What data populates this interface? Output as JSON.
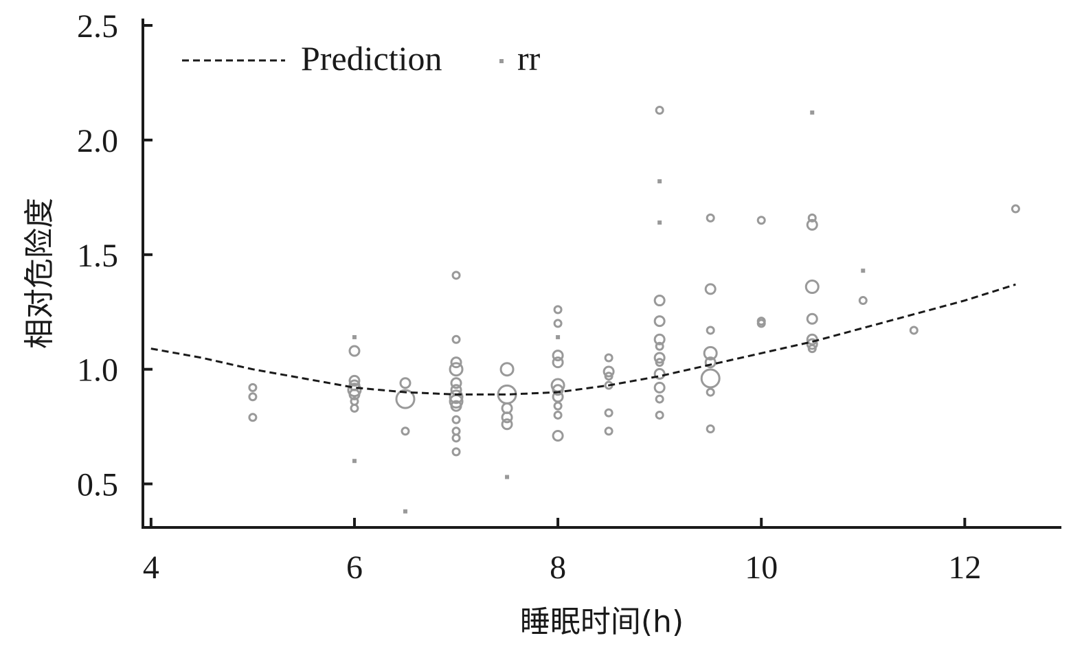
{
  "chart_data": {
    "type": "scatter",
    "xlabel": "睡眠时间(h)",
    "ylabel": "相对危险度",
    "xlim": [
      3.92,
      12.95
    ],
    "ylim": [
      0.31,
      2.53
    ],
    "x_ticks": [
      4,
      6,
      8,
      10,
      12
    ],
    "x_tick_labels": [
      "4",
      "6",
      "8",
      "10",
      "12"
    ],
    "y_ticks": [
      0.5,
      1.0,
      1.5,
      2.0,
      2.5
    ],
    "y_tick_labels": [
      "0.5",
      "1.0",
      "1.5",
      "2.0",
      "2.5"
    ],
    "legend_position": "top-left",
    "colors": {
      "axis": "#1a1a1a",
      "prediction": "#1a1a1a",
      "rr": "#999999"
    },
    "series": [
      {
        "name": "Prediction",
        "kind": "dashed-line",
        "x": [
          4,
          4.5,
          5,
          5.5,
          6,
          6.5,
          7,
          7.5,
          8,
          8.5,
          9,
          9.5,
          10,
          10.5,
          11,
          11.5,
          12,
          12.5
        ],
        "y": [
          1.09,
          1.05,
          1.0,
          0.96,
          0.92,
          0.9,
          0.89,
          0.89,
          0.9,
          0.93,
          0.97,
          1.02,
          1.07,
          1.12,
          1.18,
          1.24,
          1.3,
          1.37
        ]
      },
      {
        "name": "rr",
        "kind": "bubbles",
        "points": [
          {
            "x": 5,
            "y": 0.92,
            "w": 1
          },
          {
            "x": 5,
            "y": 0.88,
            "w": 1
          },
          {
            "x": 5,
            "y": 0.79,
            "w": 1
          },
          {
            "x": 6,
            "y": 1.14,
            "w": 0
          },
          {
            "x": 6,
            "y": 1.08,
            "w": 2
          },
          {
            "x": 6,
            "y": 0.95,
            "w": 2
          },
          {
            "x": 6,
            "y": 0.93,
            "w": 2
          },
          {
            "x": 6,
            "y": 0.91,
            "w": 3
          },
          {
            "x": 6,
            "y": 0.89,
            "w": 2
          },
          {
            "x": 6,
            "y": 0.86,
            "w": 1
          },
          {
            "x": 6,
            "y": 0.83,
            "w": 1
          },
          {
            "x": 6,
            "y": 0.6,
            "w": 0
          },
          {
            "x": 6.5,
            "y": 0.94,
            "w": 2
          },
          {
            "x": 6.5,
            "y": 0.87,
            "w": 4
          },
          {
            "x": 6.5,
            "y": 0.73,
            "w": 1
          },
          {
            "x": 6.5,
            "y": 0.38,
            "w": 0
          },
          {
            "x": 7,
            "y": 1.41,
            "w": 1
          },
          {
            "x": 7,
            "y": 1.13,
            "w": 1
          },
          {
            "x": 7,
            "y": 1.03,
            "w": 2
          },
          {
            "x": 7,
            "y": 1.0,
            "w": 3
          },
          {
            "x": 7,
            "y": 0.94,
            "w": 2
          },
          {
            "x": 7,
            "y": 0.91,
            "w": 2
          },
          {
            "x": 7,
            "y": 0.88,
            "w": 3
          },
          {
            "x": 7,
            "y": 0.86,
            "w": 3
          },
          {
            "x": 7,
            "y": 0.84,
            "w": 2
          },
          {
            "x": 7,
            "y": 0.78,
            "w": 1
          },
          {
            "x": 7,
            "y": 0.73,
            "w": 1
          },
          {
            "x": 7,
            "y": 0.7,
            "w": 1
          },
          {
            "x": 7,
            "y": 0.64,
            "w": 1
          },
          {
            "x": 7.5,
            "y": 1.0,
            "w": 3
          },
          {
            "x": 7.5,
            "y": 0.89,
            "w": 4
          },
          {
            "x": 7.5,
            "y": 0.83,
            "w": 2
          },
          {
            "x": 7.5,
            "y": 0.79,
            "w": 2
          },
          {
            "x": 7.5,
            "y": 0.76,
            "w": 2
          },
          {
            "x": 7.5,
            "y": 0.53,
            "w": 0
          },
          {
            "x": 8,
            "y": 1.26,
            "w": 1
          },
          {
            "x": 8,
            "y": 1.2,
            "w": 1
          },
          {
            "x": 8,
            "y": 1.14,
            "w": 0
          },
          {
            "x": 8,
            "y": 1.06,
            "w": 2
          },
          {
            "x": 8,
            "y": 1.03,
            "w": 2
          },
          {
            "x": 8,
            "y": 0.93,
            "w": 3
          },
          {
            "x": 8,
            "y": 0.91,
            "w": 2
          },
          {
            "x": 8,
            "y": 0.88,
            "w": 2
          },
          {
            "x": 8,
            "y": 0.84,
            "w": 1
          },
          {
            "x": 8,
            "y": 0.8,
            "w": 1
          },
          {
            "x": 8,
            "y": 0.71,
            "w": 2
          },
          {
            "x": 8.5,
            "y": 1.05,
            "w": 1
          },
          {
            "x": 8.5,
            "y": 0.99,
            "w": 2
          },
          {
            "x": 8.5,
            "y": 0.97,
            "w": 1
          },
          {
            "x": 8.5,
            "y": 0.93,
            "w": 1
          },
          {
            "x": 8.5,
            "y": 0.81,
            "w": 1
          },
          {
            "x": 8.5,
            "y": 0.73,
            "w": 1
          },
          {
            "x": 9,
            "y": 2.13,
            "w": 1
          },
          {
            "x": 9,
            "y": 1.82,
            "w": 0
          },
          {
            "x": 9,
            "y": 1.64,
            "w": 0
          },
          {
            "x": 9,
            "y": 1.3,
            "w": 2
          },
          {
            "x": 9,
            "y": 1.21,
            "w": 2
          },
          {
            "x": 9,
            "y": 1.13,
            "w": 2
          },
          {
            "x": 9,
            "y": 1.1,
            "w": 1
          },
          {
            "x": 9,
            "y": 1.05,
            "w": 2
          },
          {
            "x": 9,
            "y": 1.03,
            "w": 1
          },
          {
            "x": 9,
            "y": 0.98,
            "w": 2
          },
          {
            "x": 9,
            "y": 0.92,
            "w": 2
          },
          {
            "x": 9,
            "y": 0.87,
            "w": 1
          },
          {
            "x": 9,
            "y": 0.8,
            "w": 1
          },
          {
            "x": 9.5,
            "y": 1.66,
            "w": 1
          },
          {
            "x": 9.5,
            "y": 1.35,
            "w": 2
          },
          {
            "x": 9.5,
            "y": 1.17,
            "w": 1
          },
          {
            "x": 9.5,
            "y": 1.07,
            "w": 3
          },
          {
            "x": 9.5,
            "y": 1.03,
            "w": 2
          },
          {
            "x": 9.5,
            "y": 0.96,
            "w": 4
          },
          {
            "x": 9.5,
            "y": 0.9,
            "w": 1
          },
          {
            "x": 9.5,
            "y": 0.74,
            "w": 1
          },
          {
            "x": 10,
            "y": 1.65,
            "w": 1
          },
          {
            "x": 10,
            "y": 1.21,
            "w": 1
          },
          {
            "x": 10,
            "y": 1.2,
            "w": 1
          },
          {
            "x": 10.5,
            "y": 2.12,
            "w": 0
          },
          {
            "x": 10.5,
            "y": 1.66,
            "w": 1
          },
          {
            "x": 10.5,
            "y": 1.63,
            "w": 2
          },
          {
            "x": 10.5,
            "y": 1.36,
            "w": 3
          },
          {
            "x": 10.5,
            "y": 1.22,
            "w": 2
          },
          {
            "x": 10.5,
            "y": 1.13,
            "w": 2
          },
          {
            "x": 10.5,
            "y": 1.11,
            "w": 2
          },
          {
            "x": 10.5,
            "y": 1.09,
            "w": 1
          },
          {
            "x": 11,
            "y": 1.43,
            "w": 0
          },
          {
            "x": 11,
            "y": 1.3,
            "w": 1
          },
          {
            "x": 11.5,
            "y": 1.17,
            "w": 1
          },
          {
            "x": 12.5,
            "y": 1.7,
            "w": 1
          }
        ]
      }
    ]
  }
}
